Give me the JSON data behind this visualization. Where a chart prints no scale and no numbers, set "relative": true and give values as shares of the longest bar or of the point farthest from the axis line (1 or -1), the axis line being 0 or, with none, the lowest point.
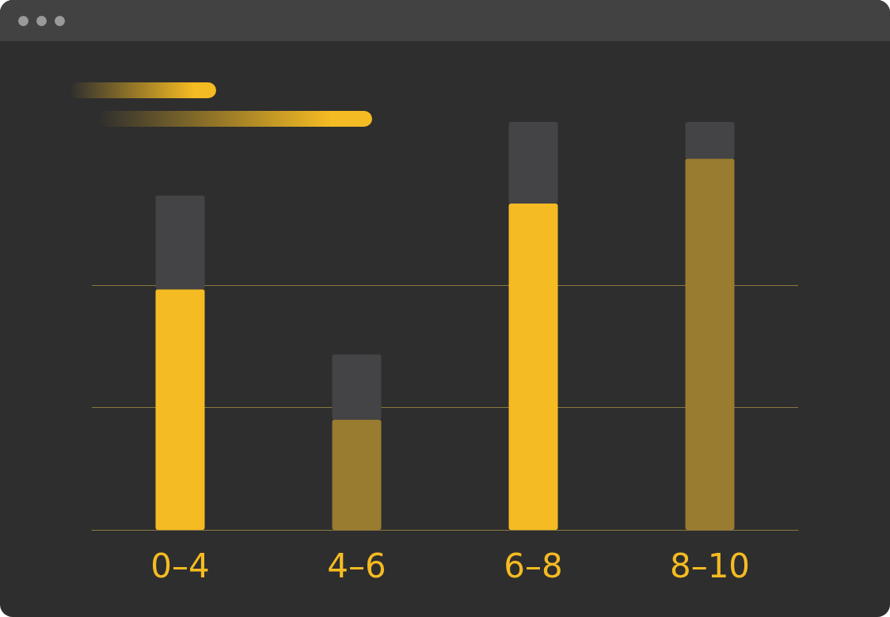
{
  "chart_data": {
    "type": "bar",
    "relative": true,
    "stacked": true,
    "ref_lines": [
      {
        "axis": "y",
        "value": 0.3,
        "color": "#8a7840"
      },
      {
        "axis": "y",
        "value": 0.6,
        "color": "#8a7840"
      }
    ],
    "categories": [
      "0–4",
      "4–6",
      "6–8",
      "8–10"
    ],
    "series": [
      {
        "colors": [
          "#f5bb22",
          "#9a7c30",
          "#f5bb22",
          "#9a7c30"
        ],
        "values": [
          0.59,
          0.27,
          0.8,
          0.91
        ]
      },
      {
        "color": "#444446",
        "values": [
          0.23,
          0.16,
          0.2,
          0.09
        ]
      }
    ]
  }
}
